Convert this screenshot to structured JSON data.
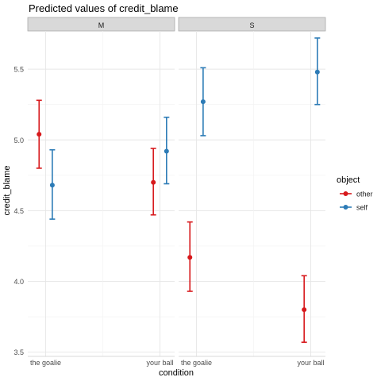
{
  "chart_data": {
    "type": "scatter",
    "title": "Predicted values of credit_blame",
    "xlabel": "condition",
    "ylabel": "credit_blame",
    "ylim": [
      3.47,
      5.77
    ],
    "yticks": [
      3.5,
      4.0,
      4.5,
      5.0,
      5.5
    ],
    "ytick_labels": [
      "3.5",
      "4.0",
      "4.5",
      "5.0",
      "5.5"
    ],
    "categories": [
      "the goalie",
      "your ball"
    ],
    "grid": true,
    "legend": {
      "title": "object",
      "position": "right"
    },
    "colors": {
      "other": "#d7191c",
      "self": "#2c7bb6"
    },
    "panels": [
      {
        "label": "M",
        "series": [
          {
            "name": "other",
            "points": [
              {
                "x": "the goalie",
                "y": 5.04,
                "lo": 4.8,
                "hi": 5.28
              },
              {
                "x": "your ball",
                "y": 4.7,
                "lo": 4.47,
                "hi": 4.94
              }
            ]
          },
          {
            "name": "self",
            "points": [
              {
                "x": "the goalie",
                "y": 4.68,
                "lo": 4.44,
                "hi": 4.93
              },
              {
                "x": "your ball",
                "y": 4.92,
                "lo": 4.69,
                "hi": 5.16
              }
            ]
          }
        ]
      },
      {
        "label": "S",
        "series": [
          {
            "name": "other",
            "points": [
              {
                "x": "the goalie",
                "y": 4.17,
                "lo": 3.93,
                "hi": 4.42
              },
              {
                "x": "your ball",
                "y": 3.8,
                "lo": 3.57,
                "hi": 4.04
              }
            ]
          },
          {
            "name": "self",
            "points": [
              {
                "x": "the goalie",
                "y": 5.27,
                "lo": 5.03,
                "hi": 5.51
              },
              {
                "x": "your ball",
                "y": 5.48,
                "lo": 5.25,
                "hi": 5.72
              }
            ]
          }
        ]
      }
    ]
  }
}
